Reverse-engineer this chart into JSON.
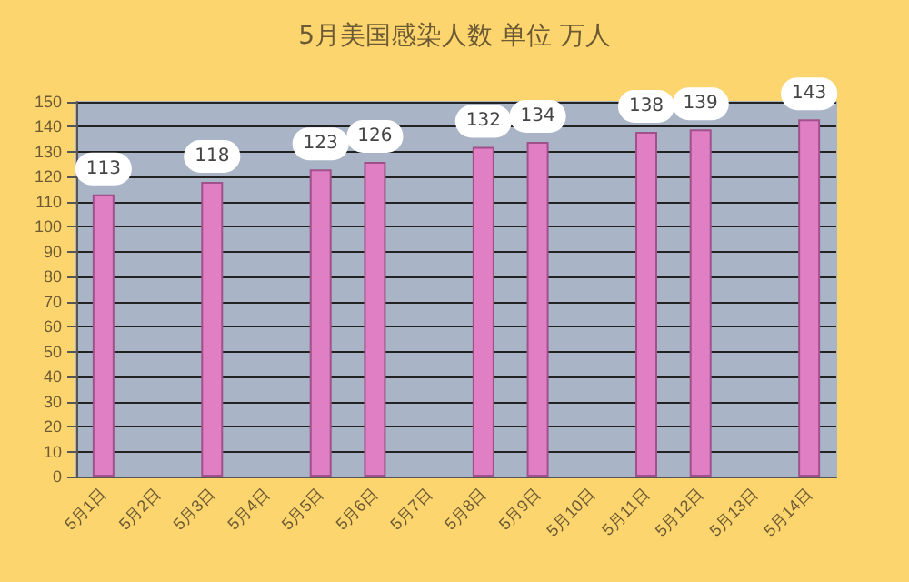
{
  "chart_data": {
    "type": "bar",
    "title": "5月美国感染人数 单位 万人",
    "categories": [
      "5月1日",
      "5月2日",
      "5月3日",
      "5月4日",
      "5月5日",
      "5月6日",
      "5月7日",
      "5月8日",
      "5月9日",
      "5月10日",
      "5月11日",
      "5月12日",
      "5月13日",
      "5月14日"
    ],
    "values": [
      113,
      null,
      118,
      null,
      123,
      126,
      null,
      132,
      134,
      null,
      138,
      139,
      null,
      143
    ],
    "color": "#e07fc4",
    "ylim": [
      0,
      150
    ],
    "yticks": [
      0,
      10,
      20,
      30,
      40,
      50,
      60,
      70,
      80,
      90,
      100,
      110,
      120,
      130,
      140,
      150
    ],
    "grid": "y",
    "data_labels": true
  }
}
